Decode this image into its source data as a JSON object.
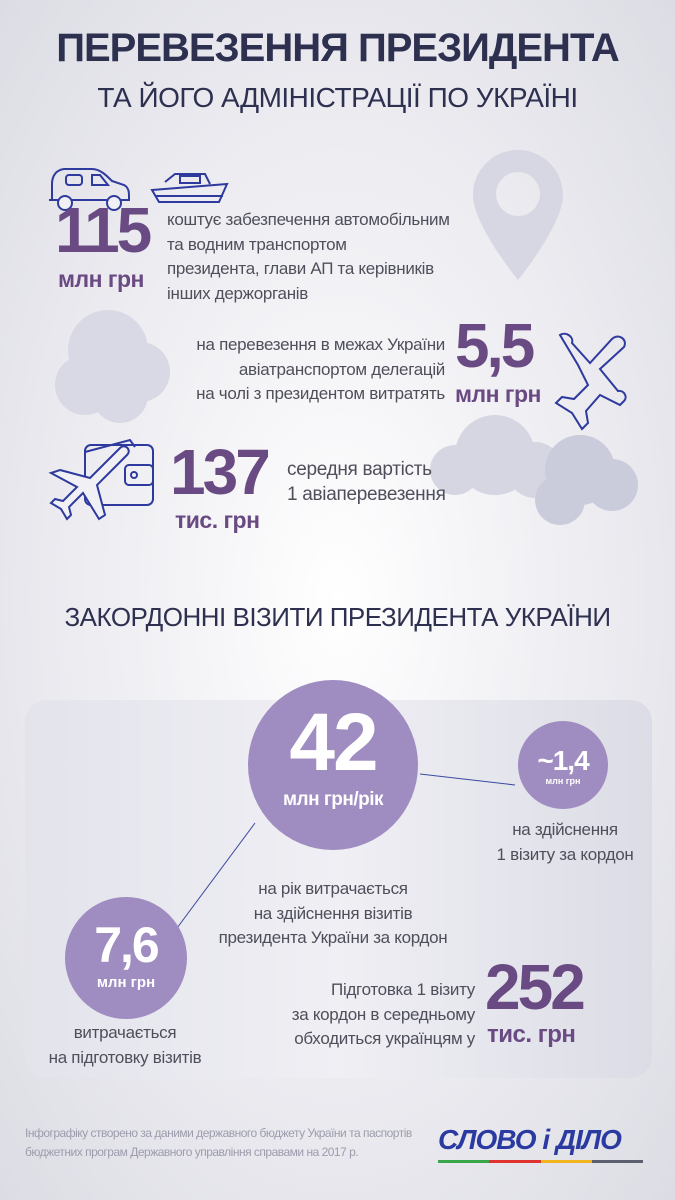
{
  "header": {
    "title_line1": "ПЕРЕВЕЗЕННЯ ПРЕЗИДЕНТА",
    "title_line2": "ТА ЙОГО АДМІНІСТРАЦІЇ ПО УКРАЇНІ"
  },
  "stats": {
    "ground": {
      "value": "115",
      "unit": "млн грн",
      "lines": [
        "коштує забезпечення автомобільним",
        "та водним транспортом",
        "президента, глави АП та керівників",
        "інших держорганів"
      ]
    },
    "air_domestic": {
      "value": "5,5",
      "unit": "млн грн",
      "lines": [
        "на перевезення в межах України",
        "авіатранспортом делегацій",
        "на чолі з президентом витратять"
      ]
    },
    "air_avg": {
      "value": "137",
      "unit": "тис. грн",
      "lines": [
        "середня вартість",
        "1 авіаперевезення"
      ]
    }
  },
  "section": {
    "title": "ЗАКОРДОННІ ВІЗИТИ ПРЕЗИДЕНТА УКРАЇНИ"
  },
  "visits": {
    "annual": {
      "value": "42",
      "unit": "млн грн/рік",
      "lines": [
        "на рік витрачається",
        "на здійснення візитів",
        "президента України за кордон"
      ]
    },
    "per_visit": {
      "value": "~1,4",
      "unit": "млн грн",
      "lines": [
        "на здійснення",
        "1 візиту за кордон"
      ]
    },
    "preparation": {
      "value": "7,6",
      "unit": "млн грн",
      "lines": [
        "витрачається",
        "на підготовку візитів"
      ]
    },
    "prep_per_visit": {
      "value": "252",
      "unit": "тис. грн",
      "lines": [
        "Підготовка 1 візиту",
        "за кордон в середньому",
        "обходиться українцям у"
      ]
    }
  },
  "footer": {
    "lines": [
      "Інфографіку створено за даними державного бюджету України та паспортів",
      "бюджетних програм Державного управління справами на 2017 р."
    ],
    "logo": "СЛОВО і ДІЛО"
  },
  "colors": {
    "accent": "#6a4a82",
    "circle": "#9f8cc0",
    "title": "#2e3050",
    "icon": "#2e3a9e",
    "logo_blue": "#2a3aa0"
  }
}
